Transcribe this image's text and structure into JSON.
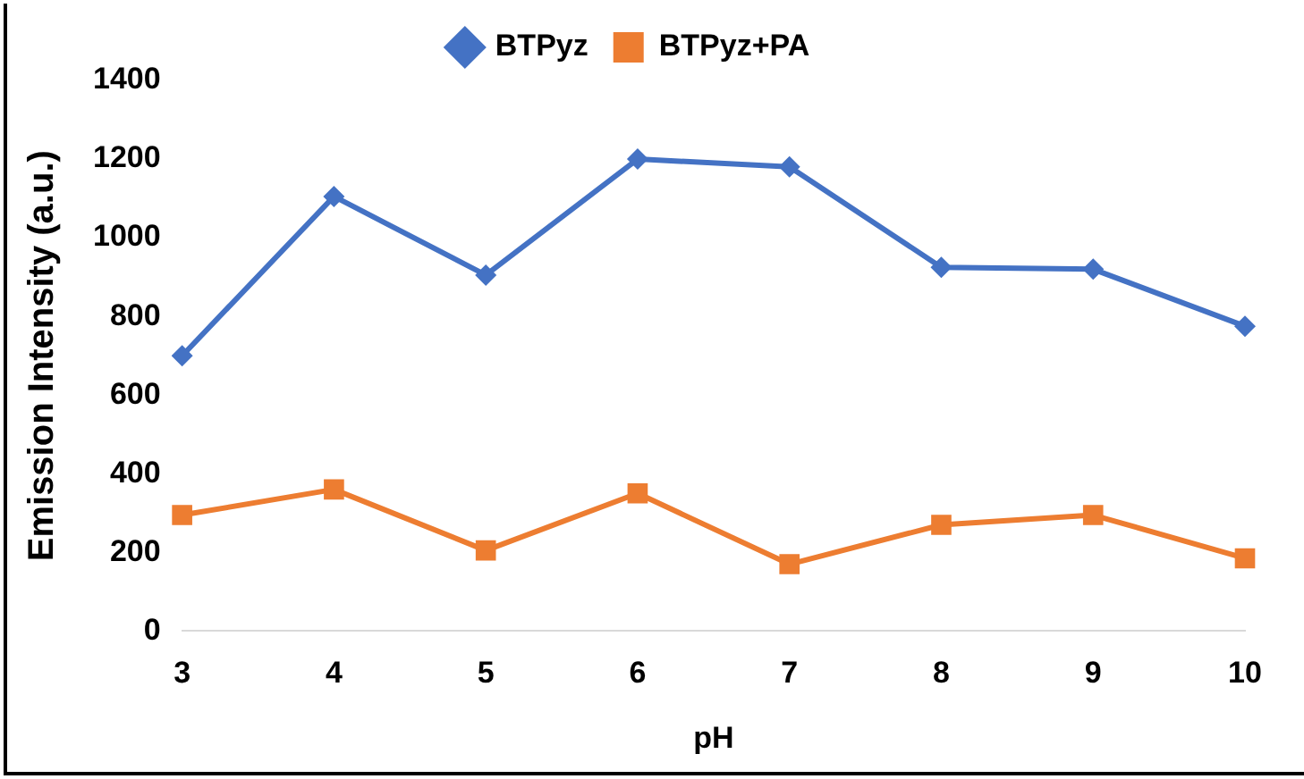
{
  "chart_data": {
    "type": "line",
    "xlabel": "pH",
    "ylabel": "Emission Intensity (a.u.)",
    "categories": [
      "3",
      "4",
      "5",
      "6",
      "7",
      "8",
      "9",
      "10"
    ],
    "series": [
      {
        "name": "BTPyz",
        "color": "#4472c4",
        "marker": "diamond",
        "values": [
          700,
          1105,
          905,
          1200,
          1180,
          925,
          920,
          775
        ]
      },
      {
        "name": "BTPyz+PA",
        "color": "#ed7d31",
        "marker": "square",
        "values": [
          295,
          360,
          205,
          350,
          170,
          270,
          295,
          185
        ]
      }
    ],
    "ylim": [
      0,
      1400
    ],
    "yticks": [
      0,
      200,
      400,
      600,
      800,
      1000,
      1200,
      1400
    ],
    "grid": false,
    "legend": "top",
    "line_style": "solid"
  }
}
